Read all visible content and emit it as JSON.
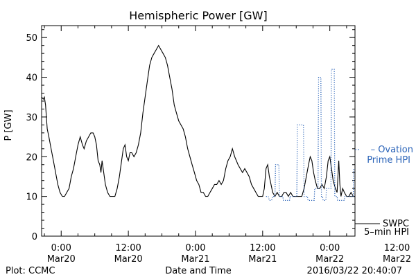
{
  "chart_data": {
    "type": "line",
    "title": "Hemispheric Power [GW]",
    "xlabel": "Date and Time",
    "ylabel": "P [GW]",
    "ylim": [
      0,
      53
    ],
    "xlim": [
      -3.5,
      52.5
    ],
    "yticks": [
      0,
      10,
      20,
      30,
      40,
      50
    ],
    "xticks": [
      {
        "x": 0,
        "time": "0:00",
        "date": "Mar20"
      },
      {
        "x": 12,
        "time": "12:00",
        "date": "Mar20"
      },
      {
        "x": 24,
        "time": "0:00",
        "date": "Mar21"
      },
      {
        "x": 36,
        "time": "12:00",
        "date": "Mar21"
      },
      {
        "x": 48,
        "time": "0:00",
        "date": "Mar22"
      },
      {
        "x": 60,
        "time": "12:00",
        "date": "Mar22"
      }
    ],
    "grid": false,
    "legend_position": "right",
    "series": [
      {
        "name": "SWPC 5-min HPI",
        "label_line1": "SWPC",
        "label_line2": "5–min HPI",
        "color": "#000000",
        "style": "solid",
        "points": [
          [
            -3.5,
            35
          ],
          [
            -3.2,
            34.5
          ],
          [
            -3.0,
            35
          ],
          [
            -2.8,
            33
          ],
          [
            -2.5,
            27
          ],
          [
            -2.2,
            25
          ],
          [
            -1.8,
            22
          ],
          [
            -1.4,
            19
          ],
          [
            -1.0,
            16
          ],
          [
            -0.6,
            13
          ],
          [
            -0.2,
            11
          ],
          [
            0.2,
            10
          ],
          [
            0.6,
            10
          ],
          [
            1.0,
            11
          ],
          [
            1.4,
            12
          ],
          [
            1.8,
            15
          ],
          [
            2.2,
            17
          ],
          [
            2.6,
            20
          ],
          [
            3.0,
            23
          ],
          [
            3.4,
            25
          ],
          [
            3.8,
            23
          ],
          [
            4.1,
            22
          ],
          [
            4.5,
            24
          ],
          [
            4.9,
            25
          ],
          [
            5.3,
            26
          ],
          [
            5.7,
            26
          ],
          [
            6.0,
            25
          ],
          [
            6.3,
            23
          ],
          [
            6.6,
            19
          ],
          [
            6.9,
            18
          ],
          [
            7.1,
            16
          ],
          [
            7.3,
            19
          ],
          [
            7.6,
            16
          ],
          [
            7.9,
            13
          ],
          [
            8.3,
            11
          ],
          [
            8.7,
            10
          ],
          [
            9.2,
            10
          ],
          [
            9.6,
            10
          ],
          [
            10.0,
            12
          ],
          [
            10.4,
            15
          ],
          [
            10.8,
            19
          ],
          [
            11.1,
            22
          ],
          [
            11.4,
            23
          ],
          [
            11.7,
            20
          ],
          [
            12.0,
            19
          ],
          [
            12.3,
            21
          ],
          [
            12.6,
            21
          ],
          [
            13.0,
            20
          ],
          [
            13.4,
            21
          ],
          [
            13.8,
            23
          ],
          [
            14.2,
            26
          ],
          [
            14.6,
            31
          ],
          [
            15.0,
            35
          ],
          [
            15.4,
            39
          ],
          [
            15.8,
            43
          ],
          [
            16.2,
            45
          ],
          [
            16.6,
            46
          ],
          [
            17.0,
            47
          ],
          [
            17.4,
            48
          ],
          [
            17.8,
            47
          ],
          [
            18.2,
            46
          ],
          [
            18.6,
            45
          ],
          [
            19.0,
            43
          ],
          [
            19.4,
            40
          ],
          [
            19.8,
            37
          ],
          [
            20.2,
            33
          ],
          [
            20.6,
            31
          ],
          [
            21.0,
            29
          ],
          [
            21.4,
            28
          ],
          [
            21.8,
            27
          ],
          [
            22.2,
            25
          ],
          [
            22.6,
            22
          ],
          [
            23.0,
            20
          ],
          [
            23.4,
            18
          ],
          [
            23.8,
            16
          ],
          [
            24.2,
            14
          ],
          [
            24.6,
            13
          ],
          [
            25.0,
            11
          ],
          [
            25.4,
            11
          ],
          [
            25.8,
            10
          ],
          [
            26.2,
            10
          ],
          [
            26.6,
            11
          ],
          [
            27.0,
            12
          ],
          [
            27.4,
            13
          ],
          [
            27.8,
            13
          ],
          [
            28.2,
            14
          ],
          [
            28.6,
            13
          ],
          [
            29.0,
            14
          ],
          [
            29.4,
            17
          ],
          [
            29.8,
            19
          ],
          [
            30.2,
            20
          ],
          [
            30.6,
            22
          ],
          [
            31.0,
            20
          ],
          [
            31.3,
            19
          ],
          [
            31.6,
            18
          ],
          [
            32.0,
            17
          ],
          [
            32.4,
            16
          ],
          [
            32.8,
            17
          ],
          [
            33.2,
            16
          ],
          [
            33.6,
            15
          ],
          [
            34.0,
            13
          ],
          [
            34.4,
            12
          ],
          [
            34.8,
            11
          ],
          [
            35.2,
            10
          ],
          [
            35.6,
            10
          ],
          [
            36.0,
            10
          ],
          [
            36.3,
            12
          ],
          [
            36.6,
            17
          ],
          [
            36.9,
            18
          ],
          [
            37.2,
            15
          ],
          [
            37.5,
            13
          ],
          [
            37.8,
            11
          ],
          [
            38.2,
            10
          ],
          [
            38.6,
            11
          ],
          [
            39.0,
            10
          ],
          [
            39.4,
            10
          ],
          [
            39.8,
            11
          ],
          [
            40.2,
            11
          ],
          [
            40.6,
            10
          ],
          [
            41.0,
            11
          ],
          [
            41.4,
            10
          ],
          [
            41.8,
            10
          ],
          [
            42.2,
            10
          ],
          [
            42.6,
            10
          ],
          [
            43.0,
            10
          ],
          [
            43.4,
            12
          ],
          [
            43.8,
            15
          ],
          [
            44.2,
            18
          ],
          [
            44.5,
            20
          ],
          [
            44.8,
            19
          ],
          [
            45.1,
            16
          ],
          [
            45.4,
            14
          ],
          [
            45.8,
            12
          ],
          [
            46.2,
            12
          ],
          [
            46.6,
            13
          ],
          [
            47.0,
            12
          ],
          [
            47.4,
            15
          ],
          [
            47.7,
            19
          ],
          [
            48.0,
            20
          ],
          [
            48.3,
            17
          ],
          [
            48.6,
            14
          ],
          [
            49.0,
            12
          ],
          [
            49.3,
            11
          ],
          [
            49.6,
            19
          ],
          [
            49.8,
            13
          ],
          [
            50.0,
            10
          ],
          [
            50.3,
            12
          ],
          [
            50.6,
            11
          ],
          [
            51.0,
            10
          ],
          [
            51.4,
            10
          ],
          [
            51.8,
            11
          ],
          [
            52.2,
            10
          ],
          [
            52.5,
            10
          ]
        ]
      },
      {
        "name": "Ovation Prime HPI",
        "label_line1": "– Ovation",
        "label_line2": "Prime HPI",
        "color": "#2a63b8",
        "style": "dotted",
        "points": [
          [
            36.6,
            10
          ],
          [
            37.0,
            10
          ],
          [
            37.2,
            9
          ],
          [
            37.6,
            9
          ],
          [
            37.8,
            10
          ],
          [
            38.2,
            10
          ],
          [
            38.3,
            18
          ],
          [
            38.9,
            18
          ],
          [
            39.0,
            10
          ],
          [
            39.6,
            10
          ],
          [
            39.7,
            9
          ],
          [
            40.8,
            9
          ],
          [
            40.9,
            10
          ],
          [
            42.1,
            10
          ],
          [
            42.2,
            28
          ],
          [
            43.3,
            28
          ],
          [
            43.4,
            10
          ],
          [
            44.0,
            10
          ],
          [
            44.1,
            9
          ],
          [
            45.2,
            9
          ],
          [
            45.3,
            12
          ],
          [
            45.9,
            12
          ],
          [
            46.0,
            40
          ],
          [
            46.4,
            40
          ],
          [
            46.5,
            10
          ],
          [
            46.7,
            10
          ],
          [
            46.8,
            9
          ],
          [
            47.3,
            9
          ],
          [
            47.4,
            12
          ],
          [
            48.2,
            12
          ],
          [
            48.3,
            42
          ],
          [
            48.8,
            42
          ],
          [
            48.9,
            10
          ],
          [
            49.3,
            10
          ],
          [
            49.4,
            9
          ],
          [
            50.6,
            9
          ],
          [
            50.7,
            10
          ],
          [
            52.2,
            10
          ],
          [
            52.3,
            17
          ]
        ]
      }
    ]
  },
  "footer": {
    "plot_credit": "Plot: CCMC",
    "timestamp": "2016/03/22 20:40:07"
  }
}
